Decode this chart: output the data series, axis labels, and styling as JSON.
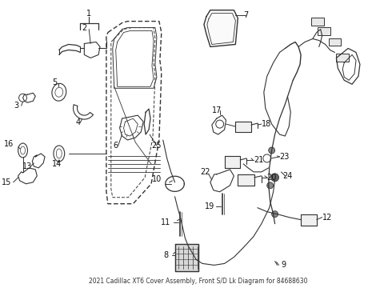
{
  "title": "2021 Cadillac XT6 Cover Assembly, Front S/D Lk Diagram for 84688630",
  "bg_color": "#ffffff",
  "fig_width": 4.9,
  "fig_height": 3.6,
  "dpi": 100
}
